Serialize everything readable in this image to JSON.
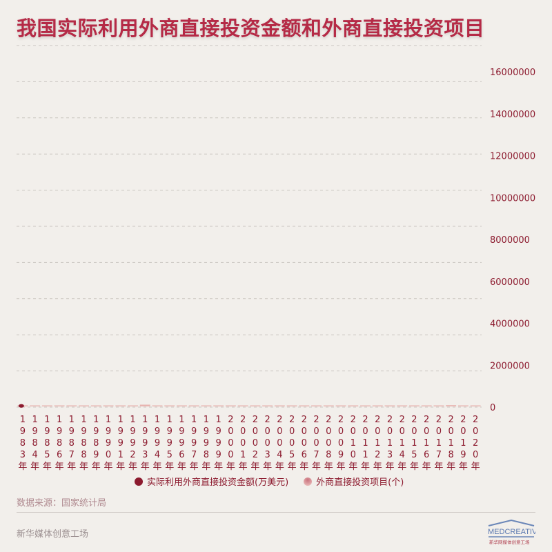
{
  "title": "我国实际利用外商直接投资金额和外商直接投资项目",
  "chart_data": {
    "type": "bar",
    "categories": [
      "1983年",
      "1984年",
      "1985年",
      "1986年",
      "1987年",
      "1988年",
      "1989年",
      "1990年",
      "1991年",
      "1992年",
      "1993年",
      "1994年",
      "1995年",
      "1996年",
      "1997年",
      "1998年",
      "1999年",
      "2000年",
      "2001年",
      "2002年",
      "2003年",
      "2004年",
      "2005年",
      "2006年",
      "2007年",
      "2008年",
      "2009年",
      "2010年",
      "2011年",
      "2012年",
      "2013年",
      "2014年",
      "2015年",
      "2016年",
      "2017年",
      "2018年",
      "2019年",
      "2020年"
    ],
    "yticks": [
      "0",
      "2000000",
      "4000000",
      "6000000",
      "8000000",
      "10000000",
      "12000000",
      "14000000",
      "16000000"
    ],
    "ylim": [
      0,
      16000000
    ],
    "grid": true,
    "legend_position": "bottom",
    "series": [
      {
        "name": "实际利用外商直接投资金额(万美元)",
        "color": "#8c1a2e",
        "values": [
          91600,
          null,
          null,
          null,
          null,
          null,
          null,
          null,
          null,
          null,
          null,
          null,
          null,
          null,
          null,
          null,
          null,
          null,
          null,
          null,
          null,
          null,
          null,
          null,
          null,
          null,
          null,
          null,
          null,
          null,
          null,
          null,
          null,
          null,
          null,
          null,
          null,
          null
        ]
      },
      {
        "name": "外商直接投资项目(个)",
        "color": "#e8b4b0",
        "values": [
          470,
          1856,
          3073,
          1498,
          2233,
          5945,
          5779,
          7273,
          12978,
          48764,
          83437,
          47549,
          37011,
          24556,
          21001,
          19799,
          16918,
          22347,
          26140,
          34171,
          41081,
          43664,
          44001,
          41473,
          37871,
          27514,
          23435,
          27406,
          27712,
          24925,
          22773,
          23778,
          26575,
          27900,
          35652,
          60533,
          40888,
          38570
        ]
      }
    ]
  },
  "source": "数据来源：国家统计局",
  "brand": "新华媒体创意工场",
  "logo_text": "MEDCREATIVE 新华网媒体创意工场"
}
